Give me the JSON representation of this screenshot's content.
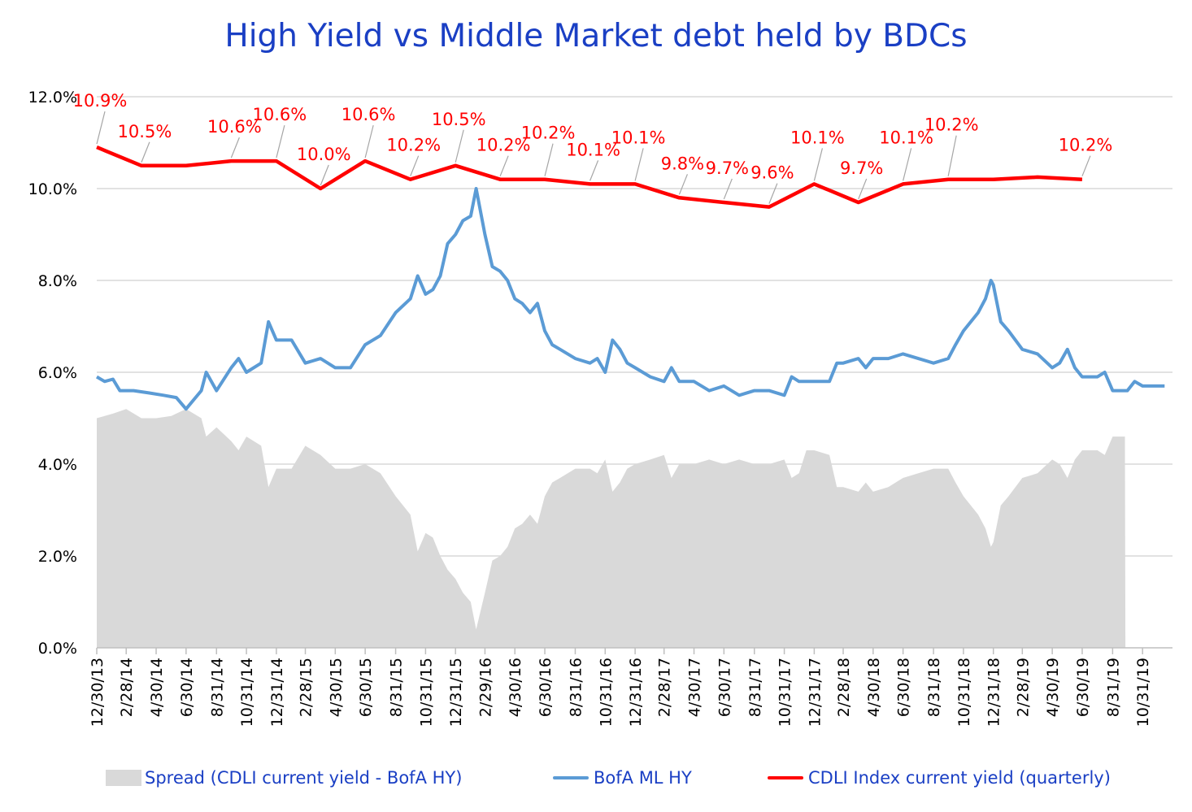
{
  "chart_data": {
    "type": "line",
    "title": "High Yield  vs  Middle Market debt held by BDCs",
    "xlabel": "",
    "ylabel": "",
    "ylim": [
      0,
      12
    ],
    "y_ticks": [
      "0.0%",
      "2.0%",
      "4.0%",
      "6.0%",
      "8.0%",
      "10.0%",
      "12.0%"
    ],
    "x_ticks": [
      "12/30/13",
      "2/28/14",
      "4/30/14",
      "6/30/14",
      "8/31/14",
      "10/31/14",
      "12/31/14",
      "2/28/15",
      "4/30/15",
      "6/30/15",
      "8/31/15",
      "10/31/15",
      "12/31/15",
      "2/29/16",
      "4/30/16",
      "6/30/16",
      "8/31/16",
      "10/31/16",
      "12/31/16",
      "2/28/17",
      "4/30/17",
      "6/30/17",
      "8/31/17",
      "10/31/17",
      "12/31/17",
      "2/28/18",
      "4/30/18",
      "6/30/18",
      "8/31/18",
      "10/31/18",
      "12/31/18",
      "2/28/19",
      "4/30/19",
      "6/30/19",
      "8/31/19",
      "10/31/19"
    ],
    "grid": true,
    "legend_position": "bottom",
    "colors": {
      "cdli": "#ff0000",
      "bofa": "#5b9bd5",
      "spread": "#d9d9d9",
      "title": "#1a3fc4",
      "grid": "#d9d9d9"
    },
    "series": [
      {
        "name": "CDLI Index current yield (quarterly)",
        "type": "line",
        "points": [
          [
            "12/30/13",
            10.9
          ],
          [
            "3/31/14",
            10.5
          ],
          [
            "6/30/14",
            10.5
          ],
          [
            "9/30/14",
            10.6
          ],
          [
            "12/31/14",
            10.6
          ],
          [
            "3/31/15",
            10.0
          ],
          [
            "6/30/15",
            10.6
          ],
          [
            "9/30/15",
            10.2
          ],
          [
            "12/31/15",
            10.5
          ],
          [
            "3/31/16",
            10.2
          ],
          [
            "6/30/16",
            10.2
          ],
          [
            "9/30/16",
            10.1
          ],
          [
            "12/31/16",
            10.1
          ],
          [
            "3/31/17",
            9.8
          ],
          [
            "6/30/17",
            9.7
          ],
          [
            "9/30/17",
            9.6
          ],
          [
            "12/31/17",
            10.1
          ],
          [
            "3/31/18",
            9.7
          ],
          [
            "6/30/18",
            10.1
          ],
          [
            "9/30/18",
            10.2
          ],
          [
            "12/31/18",
            10.2
          ],
          [
            "3/31/19",
            10.25
          ],
          [
            "6/30/19",
            10.2
          ]
        ],
        "data_labels": [
          {
            "x": "12/30/13",
            "text": "10.9%"
          },
          {
            "x": "3/31/14",
            "text": "10.5%"
          },
          {
            "x": "9/30/14",
            "text": "10.6%"
          },
          {
            "x": "12/31/14",
            "text": "10.6%"
          },
          {
            "x": "3/31/15",
            "text": "10.0%"
          },
          {
            "x": "6/30/15",
            "text": "10.6%"
          },
          {
            "x": "9/30/15",
            "text": "10.2%"
          },
          {
            "x": "12/31/15",
            "text": "10.5%"
          },
          {
            "x": "3/31/16",
            "text": "10.2%"
          },
          {
            "x": "6/30/16",
            "text": "10.2%"
          },
          {
            "x": "9/30/16",
            "text": "10.1%"
          },
          {
            "x": "12/31/16",
            "text": "10.1%"
          },
          {
            "x": "3/31/17",
            "text": "9.8%"
          },
          {
            "x": "6/30/17",
            "text": "9.7%"
          },
          {
            "x": "9/30/17",
            "text": "9.6%"
          },
          {
            "x": "12/31/17",
            "text": "10.1%"
          },
          {
            "x": "3/31/18",
            "text": "9.7%"
          },
          {
            "x": "6/30/18",
            "text": "10.1%"
          },
          {
            "x": "9/30/18",
            "text": "10.2%"
          },
          {
            "x": "6/30/19",
            "text": "10.2%"
          }
        ]
      },
      {
        "name": "BofA ML HY",
        "type": "line",
        "points": [
          [
            "12/30/13",
            5.9
          ],
          [
            "1/15/14",
            5.8
          ],
          [
            "2/1/14",
            5.85
          ],
          [
            "2/15/14",
            5.6
          ],
          [
            "3/15/14",
            5.6
          ],
          [
            "4/15/14",
            5.55
          ],
          [
            "5/15/14",
            5.5
          ],
          [
            "6/10/14",
            5.45
          ],
          [
            "6/30/14",
            5.2
          ],
          [
            "7/31/14",
            5.6
          ],
          [
            "8/10/14",
            6.0
          ],
          [
            "8/31/14",
            5.6
          ],
          [
            "9/30/14",
            6.1
          ],
          [
            "10/15/14",
            6.3
          ],
          [
            "10/31/14",
            6.0
          ],
          [
            "11/30/14",
            6.2
          ],
          [
            "12/15/14",
            7.1
          ],
          [
            "12/31/14",
            6.7
          ],
          [
            "1/31/15",
            6.7
          ],
          [
            "2/28/15",
            6.2
          ],
          [
            "3/31/15",
            6.3
          ],
          [
            "4/30/15",
            6.1
          ],
          [
            "5/31/15",
            6.1
          ],
          [
            "6/30/15",
            6.6
          ],
          [
            "7/31/15",
            6.8
          ],
          [
            "8/31/15",
            7.3
          ],
          [
            "9/30/15",
            7.6
          ],
          [
            "10/15/15",
            8.1
          ],
          [
            "10/31/15",
            7.7
          ],
          [
            "11/15/15",
            7.8
          ],
          [
            "11/30/15",
            8.1
          ],
          [
            "12/15/15",
            8.8
          ],
          [
            "12/31/15",
            9.0
          ],
          [
            "1/15/16",
            9.3
          ],
          [
            "1/31/16",
            9.4
          ],
          [
            "2/11/16",
            10.0
          ],
          [
            "2/29/16",
            9.0
          ],
          [
            "3/15/16",
            8.3
          ],
          [
            "3/31/16",
            8.2
          ],
          [
            "4/15/16",
            8.0
          ],
          [
            "4/30/16",
            7.6
          ],
          [
            "5/15/16",
            7.5
          ],
          [
            "5/31/16",
            7.3
          ],
          [
            "6/15/16",
            7.5
          ],
          [
            "6/30/16",
            6.9
          ],
          [
            "7/15/16",
            6.6
          ],
          [
            "7/31/16",
            6.5
          ],
          [
            "8/31/16",
            6.3
          ],
          [
            "9/30/16",
            6.2
          ],
          [
            "10/15/16",
            6.3
          ],
          [
            "10/31/16",
            6.0
          ],
          [
            "11/15/16",
            6.7
          ],
          [
            "11/30/16",
            6.5
          ],
          [
            "12/15/16",
            6.2
          ],
          [
            "12/31/16",
            6.1
          ],
          [
            "1/31/17",
            5.9
          ],
          [
            "2/28/17",
            5.8
          ],
          [
            "3/15/17",
            6.1
          ],
          [
            "3/31/17",
            5.8
          ],
          [
            "4/30/17",
            5.8
          ],
          [
            "5/31/17",
            5.6
          ],
          [
            "6/30/17",
            5.7
          ],
          [
            "7/31/17",
            5.5
          ],
          [
            "8/31/17",
            5.6
          ],
          [
            "9/30/17",
            5.6
          ],
          [
            "10/31/17",
            5.5
          ],
          [
            "11/15/17",
            5.9
          ],
          [
            "11/30/17",
            5.8
          ],
          [
            "12/31/17",
            5.8
          ],
          [
            "1/31/18",
            5.8
          ],
          [
            "2/15/18",
            6.2
          ],
          [
            "2/28/18",
            6.2
          ],
          [
            "3/31/18",
            6.3
          ],
          [
            "4/15/18",
            6.1
          ],
          [
            "4/30/18",
            6.3
          ],
          [
            "5/31/18",
            6.3
          ],
          [
            "6/30/18",
            6.4
          ],
          [
            "7/31/18",
            6.3
          ],
          [
            "8/31/18",
            6.2
          ],
          [
            "9/30/18",
            6.3
          ],
          [
            "10/15/18",
            6.6
          ],
          [
            "10/31/18",
            6.9
          ],
          [
            "11/30/18",
            7.3
          ],
          [
            "12/15/18",
            7.6
          ],
          [
            "12/26/18",
            8.0
          ],
          [
            "12/31/18",
            7.9
          ],
          [
            "1/15/19",
            7.1
          ],
          [
            "1/31/19",
            6.9
          ],
          [
            "2/28/19",
            6.5
          ],
          [
            "3/31/19",
            6.4
          ],
          [
            "4/30/19",
            6.1
          ],
          [
            "5/15/19",
            6.2
          ],
          [
            "5/31/19",
            6.5
          ],
          [
            "6/15/19",
            6.1
          ],
          [
            "6/30/19",
            5.9
          ],
          [
            "7/31/19",
            5.9
          ],
          [
            "8/15/19",
            6.0
          ],
          [
            "8/31/19",
            5.6
          ],
          [
            "9/30/19",
            5.6
          ],
          [
            "10/15/19",
            5.8
          ],
          [
            "10/31/19",
            5.7
          ],
          [
            "11/30/19",
            5.7
          ],
          [
            "12/15/19",
            5.7
          ]
        ]
      },
      {
        "name": "Spread (CDLI current yield - BofA HY)",
        "type": "area",
        "points": [
          [
            "12/30/13",
            5.0
          ],
          [
            "2/1/14",
            5.1
          ],
          [
            "2/28/14",
            5.2
          ],
          [
            "3/31/14",
            5.0
          ],
          [
            "4/30/14",
            5.0
          ],
          [
            "5/31/14",
            5.05
          ],
          [
            "6/30/14",
            5.2
          ],
          [
            "7/31/14",
            5.0
          ],
          [
            "8/10/14",
            4.6
          ],
          [
            "8/31/14",
            4.8
          ],
          [
            "9/30/14",
            4.5
          ],
          [
            "10/15/14",
            4.3
          ],
          [
            "10/31/14",
            4.6
          ],
          [
            "11/30/14",
            4.4
          ],
          [
            "12/15/14",
            3.5
          ],
          [
            "12/31/14",
            3.9
          ],
          [
            "1/31/15",
            3.9
          ],
          [
            "2/28/15",
            4.4
          ],
          [
            "3/31/15",
            4.2
          ],
          [
            "4/30/15",
            3.9
          ],
          [
            "5/31/15",
            3.9
          ],
          [
            "6/30/15",
            4.0
          ],
          [
            "7/31/15",
            3.8
          ],
          [
            "8/31/15",
            3.3
          ],
          [
            "9/30/15",
            2.9
          ],
          [
            "10/15/15",
            2.1
          ],
          [
            "10/31/15",
            2.5
          ],
          [
            "11/15/15",
            2.4
          ],
          [
            "11/30/15",
            2.0
          ],
          [
            "12/15/15",
            1.7
          ],
          [
            "12/31/15",
            1.5
          ],
          [
            "1/15/16",
            1.2
          ],
          [
            "1/31/16",
            1.0
          ],
          [
            "2/11/16",
            0.4
          ],
          [
            "2/29/16",
            1.2
          ],
          [
            "3/15/16",
            1.9
          ],
          [
            "3/31/16",
            2.0
          ],
          [
            "4/15/16",
            2.2
          ],
          [
            "4/30/16",
            2.6
          ],
          [
            "5/15/16",
            2.7
          ],
          [
            "5/31/16",
            2.9
          ],
          [
            "6/15/16",
            2.7
          ],
          [
            "6/30/16",
            3.3
          ],
          [
            "7/15/16",
            3.6
          ],
          [
            "7/31/16",
            3.7
          ],
          [
            "8/31/16",
            3.9
          ],
          [
            "9/30/16",
            3.9
          ],
          [
            "10/15/16",
            3.8
          ],
          [
            "10/31/16",
            4.1
          ],
          [
            "11/15/16",
            3.4
          ],
          [
            "11/30/16",
            3.6
          ],
          [
            "12/15/16",
            3.9
          ],
          [
            "12/31/16",
            4.0
          ],
          [
            "1/31/17",
            4.1
          ],
          [
            "2/28/17",
            4.2
          ],
          [
            "3/15/17",
            3.7
          ],
          [
            "3/31/17",
            4.0
          ],
          [
            "4/30/17",
            4.0
          ],
          [
            "5/31/17",
            4.1
          ],
          [
            "6/30/17",
            4.0
          ],
          [
            "7/31/17",
            4.1
          ],
          [
            "8/31/17",
            4.0
          ],
          [
            "9/30/17",
            4.0
          ],
          [
            "10/31/17",
            4.1
          ],
          [
            "11/15/17",
            3.7
          ],
          [
            "11/30/17",
            3.8
          ],
          [
            "12/15/17",
            4.3
          ],
          [
            "12/31/17",
            4.3
          ],
          [
            "1/31/18",
            4.2
          ],
          [
            "2/15/18",
            3.5
          ],
          [
            "2/28/18",
            3.5
          ],
          [
            "3/31/18",
            3.4
          ],
          [
            "4/15/18",
            3.6
          ],
          [
            "4/30/18",
            3.4
          ],
          [
            "5/31/18",
            3.5
          ],
          [
            "6/30/18",
            3.7
          ],
          [
            "7/31/18",
            3.8
          ],
          [
            "8/31/18",
            3.9
          ],
          [
            "9/30/18",
            3.9
          ],
          [
            "10/15/18",
            3.6
          ],
          [
            "10/31/18",
            3.3
          ],
          [
            "11/30/18",
            2.9
          ],
          [
            "12/15/18",
            2.6
          ],
          [
            "12/26/18",
            2.2
          ],
          [
            "12/31/18",
            2.3
          ],
          [
            "1/15/19",
            3.1
          ],
          [
            "1/31/19",
            3.3
          ],
          [
            "2/28/19",
            3.7
          ],
          [
            "3/31/19",
            3.8
          ],
          [
            "4/30/19",
            4.1
          ],
          [
            "5/15/19",
            4.0
          ],
          [
            "5/31/19",
            3.7
          ],
          [
            "6/15/19",
            4.1
          ],
          [
            "6/30/19",
            4.3
          ],
          [
            "7/31/19",
            4.3
          ],
          [
            "8/15/19",
            4.2
          ],
          [
            "8/31/19",
            4.6
          ],
          [
            "9/25/19",
            4.6
          ],
          [
            "9/26/19",
            0
          ]
        ]
      }
    ]
  },
  "legend": {
    "spread": "Spread (CDLI current yield - BofA HY)",
    "bofa": "BofA ML HY",
    "cdli": "CDLI Index current yield (quarterly)"
  }
}
